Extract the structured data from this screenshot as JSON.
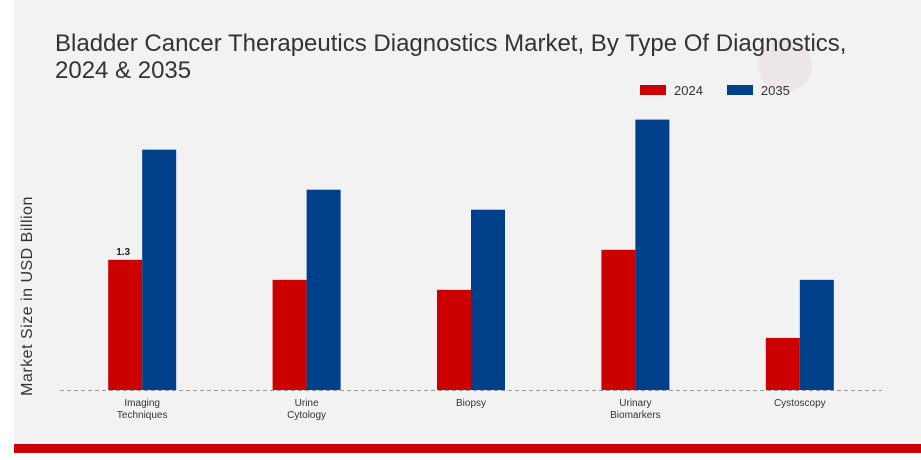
{
  "chart_data": {
    "type": "bar",
    "title": "Bladder Cancer Therapeutics Diagnostics Market, By Type Of Diagnostics, 2024 & 2035",
    "ylabel": "Market Size in USD Billion",
    "xlabel": "",
    "categories": [
      [
        "Imaging",
        "Techniques"
      ],
      [
        "Urine",
        "Cytology"
      ],
      [
        "Biopsy"
      ],
      [
        "Urinary",
        "Biomarkers"
      ],
      [
        "Cystoscopy"
      ]
    ],
    "series": [
      {
        "name": "2024",
        "color": "#cc0000",
        "values": [
          1.3,
          1.1,
          1.0,
          1.4,
          0.52
        ]
      },
      {
        "name": "2035",
        "color": "#003f8a",
        "values": [
          2.4,
          2.0,
          1.8,
          2.7,
          1.1
        ]
      }
    ],
    "data_labels": [
      {
        "series": 0,
        "index": 0,
        "text": "1.3"
      }
    ],
    "ylim": [
      0,
      3.5
    ],
    "grid": false,
    "legend_position": "top-right"
  }
}
